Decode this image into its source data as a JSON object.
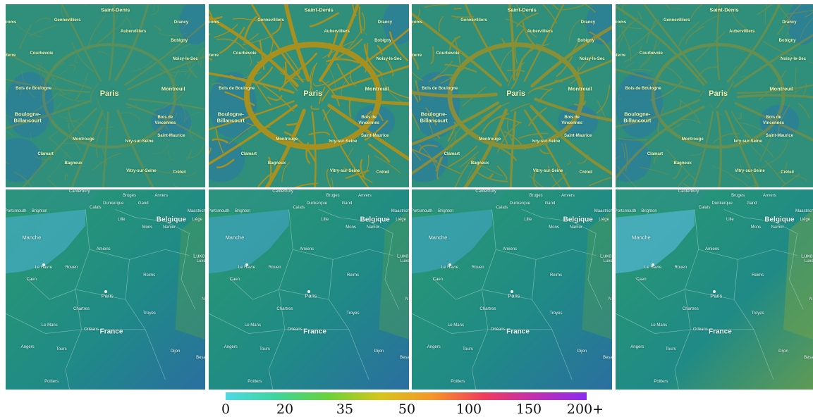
{
  "paris_labels": {
    "saint_denis": "Saint-Denis",
    "gennevilliers": "Gennevilliers",
    "aubervilliers": "Aubervilliers",
    "drancy": "Drancy",
    "bobigny": "Bobigny",
    "courbevoie": "Courbevoie",
    "noisy": "Noisy-le-Sec",
    "bois_boulogne": "Bois de Boulogne",
    "paris": "Paris",
    "montreuil": "Montreuil",
    "boulogne_1": "Boulogne-",
    "boulogne_2": "Billancourt",
    "bois_vincennes_1": "Bois de",
    "bois_vincennes_2": "Vincennes",
    "saint_maurice": "Saint-Maurice",
    "montrouge": "Montrouge",
    "ivry": "Ivry-sur-Seine",
    "clamart": "Clamart",
    "bagneux": "Bagneux",
    "vitry": "Vitry-sur-Seine",
    "creteil": "Créteil",
    "colombes_part": "ecoms",
    "nanterre_part": "nterre"
  },
  "france_labels": {
    "canterbury": "Canterbury",
    "bruges": "Bruges",
    "anvers": "Anvers",
    "gand": "Gand",
    "dunkerque": "Dunkerque",
    "calais": "Calais",
    "portsmouth": "Portsmouth",
    "brighton": "Brighton",
    "maastricht": "Maastricht",
    "belgique": "Belgique",
    "liege": "Liège",
    "lille": "Lille",
    "mons": "Mons",
    "namur": "Namur",
    "manche": "Manche",
    "amiens": "Amiens",
    "luxem": "Luxem",
    "luxem_sub": "Luxe",
    "le_havre": "Le Havre",
    "rouen": "Rouen",
    "caen": "Caen",
    "reims": "Reims",
    "paris": "Paris",
    "chartres": "Chartres",
    "troyes": "Troyes",
    "le_mans": "Le Mans",
    "orleans": "Orléans",
    "france": "France",
    "angers": "Angers",
    "tours": "Tours",
    "dijon": "Dijon",
    "besancon": "Besanç",
    "poitiers": "Poitiers",
    "nancy_part": "N"
  },
  "legend": {
    "ticks": [
      "0",
      "20",
      "35",
      "50",
      "100",
      "150",
      "200+"
    ],
    "colors": [
      "#4fd9e6",
      "#3fd49a",
      "#6ad23a",
      "#d6c51e",
      "#f5962a",
      "#ef3d5a",
      "#c02fb0",
      "#8c2cf0"
    ]
  },
  "panel_colors": {
    "paris_base": "#2f8f7a",
    "paris_road": "#a8901f",
    "france_sea": "#3f9fb0",
    "france_land": "#2a9a78"
  }
}
